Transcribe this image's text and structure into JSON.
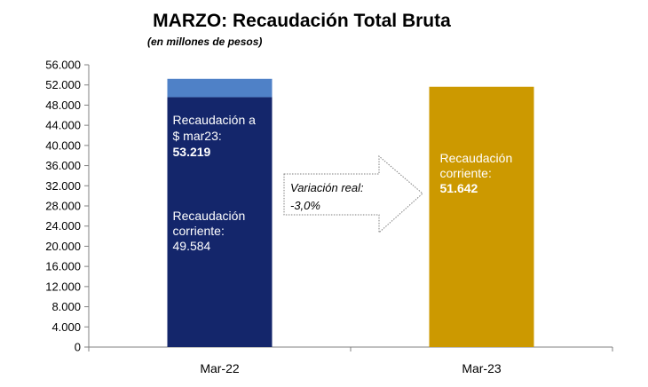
{
  "chart_data": {
    "type": "bar",
    "title": "MARZO: Recaudación Total Bruta",
    "subtitle": "(en millones de pesos)",
    "categories": [
      "Mar-22",
      "Mar-23"
    ],
    "ylim": [
      0,
      56000
    ],
    "yticks": [
      "56.000",
      "52.000",
      "48.000",
      "44.000",
      "40.000",
      "36.000",
      "32.000",
      "28.000",
      "24.000",
      "20.000",
      "16.000",
      "12.000",
      "8.000",
      "4.000",
      "0"
    ],
    "ytick_values": [
      56000,
      52000,
      48000,
      44000,
      40000,
      36000,
      32000,
      28000,
      24000,
      20000,
      16000,
      12000,
      8000,
      4000,
      0
    ],
    "bars": [
      {
        "category": "Mar-22",
        "base_value": 49584,
        "top_value": 53219,
        "base_color": "#14266b",
        "top_color": "#4f81c7",
        "top_label_1": "Recaudación a",
        "top_label_2": "$ mar23:",
        "top_value_label": "53.219",
        "base_label_1": "Recaudación",
        "base_label_2": "corriente:",
        "base_value_label": "49.584"
      },
      {
        "category": "Mar-23",
        "value": 51642,
        "color": "#cc9900",
        "label_1": "Recaudación",
        "label_2": "corriente:",
        "value_label": "51.642"
      }
    ],
    "annotation": {
      "line_1": "Variación real:",
      "line_2": "-3,0%"
    },
    "grid": false
  }
}
